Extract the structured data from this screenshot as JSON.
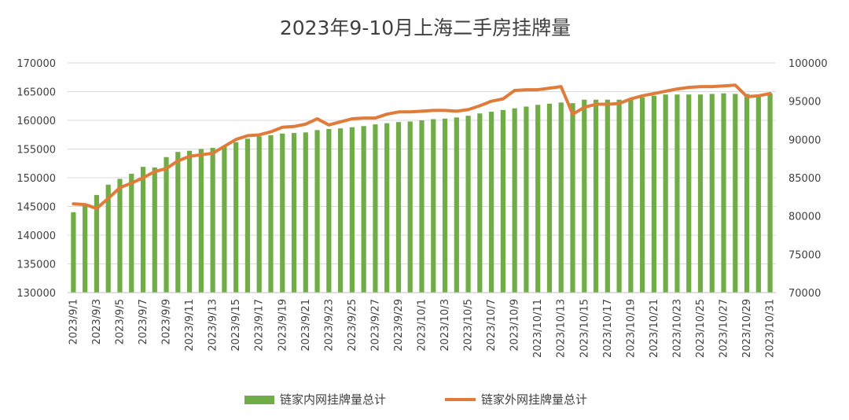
{
  "chart_data": {
    "type": "bar",
    "title": "2023年9-10月上海二手房挂牌量",
    "categories": [
      "2023/9/1",
      "2023/9/2",
      "2023/9/3",
      "2023/9/4",
      "2023/9/5",
      "2023/9/6",
      "2023/9/7",
      "2023/9/8",
      "2023/9/9",
      "2023/9/10",
      "2023/9/11",
      "2023/9/12",
      "2023/9/13",
      "2023/9/14",
      "2023/9/15",
      "2023/9/16",
      "2023/9/17",
      "2023/9/18",
      "2023/9/19",
      "2023/9/20",
      "2023/9/21",
      "2023/9/22",
      "2023/9/23",
      "2023/9/24",
      "2023/9/25",
      "2023/9/26",
      "2023/9/27",
      "2023/9/28",
      "2023/9/29",
      "2023/9/30",
      "2023/10/1",
      "2023/10/2",
      "2023/10/3",
      "2023/10/4",
      "2023/10/5",
      "2023/10/6",
      "2023/10/7",
      "2023/10/8",
      "2023/10/9",
      "2023/10/10",
      "2023/10/11",
      "2023/10/12",
      "2023/10/13",
      "2023/10/14",
      "2023/10/15",
      "2023/10/16",
      "2023/10/17",
      "2023/10/18",
      "2023/10/19",
      "2023/10/20",
      "2023/10/21",
      "2023/10/22",
      "2023/10/23",
      "2023/10/24",
      "2023/10/25",
      "2023/10/26",
      "2023/10/27",
      "2023/10/28",
      "2023/10/29",
      "2023/10/30",
      "2023/10/31"
    ],
    "x_tick_labels": [
      "2023/9/1",
      "2023/9/3",
      "2023/9/5",
      "2023/9/7",
      "2023/9/9",
      "2023/9/11",
      "2023/9/13",
      "2023/9/15",
      "2023/9/17",
      "2023/9/19",
      "2023/9/21",
      "2023/9/23",
      "2023/9/25",
      "2023/9/27",
      "2023/9/29",
      "2023/10/1",
      "2023/10/3",
      "2023/10/5",
      "2023/10/7",
      "2023/10/9",
      "2023/10/11",
      "2023/10/13",
      "2023/10/15",
      "2023/10/17",
      "2023/10/19",
      "2023/10/21",
      "2023/10/23",
      "2023/10/25",
      "2023/10/27",
      "2023/10/29",
      "2023/10/31"
    ],
    "y_left": {
      "range": [
        130000,
        170000
      ],
      "ticks": [
        "130000",
        "135000",
        "140000",
        "145000",
        "150000",
        "155000",
        "160000",
        "165000",
        "170000"
      ]
    },
    "y_right": {
      "range": [
        70000,
        100000
      ],
      "ticks": [
        "70000",
        "75000",
        "80000",
        "85000",
        "90000",
        "95000",
        "100000"
      ]
    },
    "grid": true,
    "legend_position": "bottom",
    "series": [
      {
        "name": "链家内网挂牌量总计",
        "type": "bar",
        "axis": "left",
        "color": "#70ad47",
        "values": [
          144000,
          145400,
          147000,
          148800,
          149800,
          150700,
          151900,
          151800,
          153600,
          154500,
          154700,
          155000,
          155200,
          155400,
          156200,
          156800,
          157200,
          157400,
          157700,
          157800,
          157900,
          158300,
          158500,
          158600,
          158800,
          159000,
          159300,
          159500,
          159700,
          159800,
          160000,
          160200,
          160300,
          160500,
          160800,
          161200,
          161500,
          161800,
          162100,
          162400,
          162700,
          162900,
          163100,
          163000,
          163600,
          163600,
          163600,
          163600,
          163800,
          164000,
          164300,
          164500,
          164500,
          164500,
          164500,
          164600,
          164700,
          164600,
          164600,
          164500,
          164700
        ]
      },
      {
        "name": "链家外网挂牌量总计",
        "type": "line",
        "axis": "right",
        "color": "#e07b39",
        "values": [
          81600,
          81500,
          81000,
          82300,
          83700,
          84300,
          85000,
          85800,
          86200,
          87200,
          87800,
          88000,
          88200,
          89100,
          90000,
          90500,
          90600,
          91000,
          91600,
          91700,
          92000,
          92700,
          91900,
          92300,
          92700,
          92800,
          92800,
          93300,
          93600,
          93600,
          93700,
          93800,
          93800,
          93700,
          93900,
          94400,
          95000,
          95300,
          96400,
          96500,
          96500,
          96700,
          96900,
          93300,
          94200,
          94600,
          94600,
          94700,
          95300,
          95700,
          96000,
          96300,
          96600,
          96800,
          96900,
          96900,
          97000,
          97100,
          95600,
          95700,
          96000
        ]
      }
    ]
  }
}
